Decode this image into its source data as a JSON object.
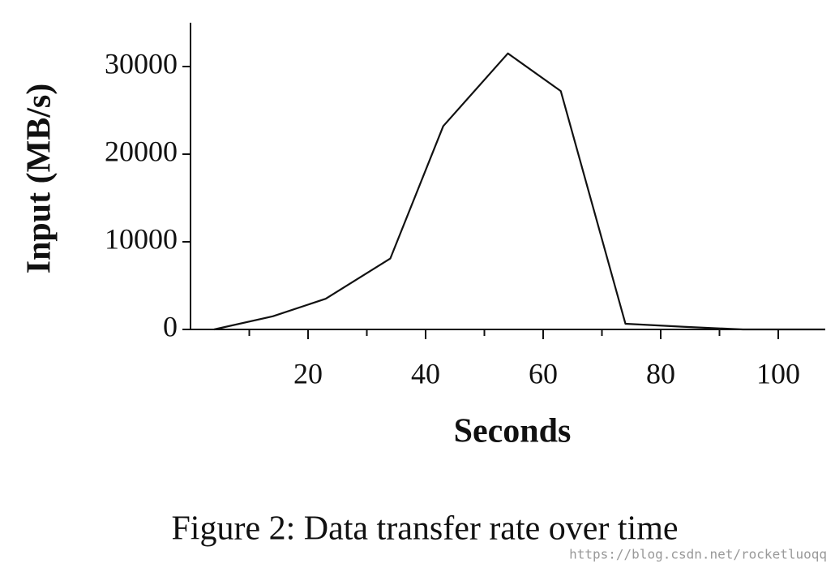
{
  "chart_data": {
    "type": "line",
    "x_label": "Seconds",
    "y_label": "Input (MB/s)",
    "x": [
      4,
      14,
      23,
      34,
      43,
      54,
      63,
      74,
      84,
      94,
      108
    ],
    "series": [
      {
        "name": "Input",
        "color": "#111111",
        "values": [
          0,
          1500,
          3500,
          8100,
          23200,
          31500,
          27200,
          650,
          300,
          0,
          0
        ]
      }
    ],
    "xlim": [
      0,
      108
    ],
    "xticks": [
      20,
      40,
      60,
      80,
      100
    ],
    "xminorticks": [
      10,
      30,
      50,
      70,
      90
    ],
    "ylim": [
      0,
      35000
    ],
    "yticks": [
      0,
      10000,
      20000,
      30000
    ],
    "grid": false
  },
  "caption": "Figure 2: Data transfer rate over time",
  "watermark": "https://blog.csdn.net/rocketluoqq"
}
